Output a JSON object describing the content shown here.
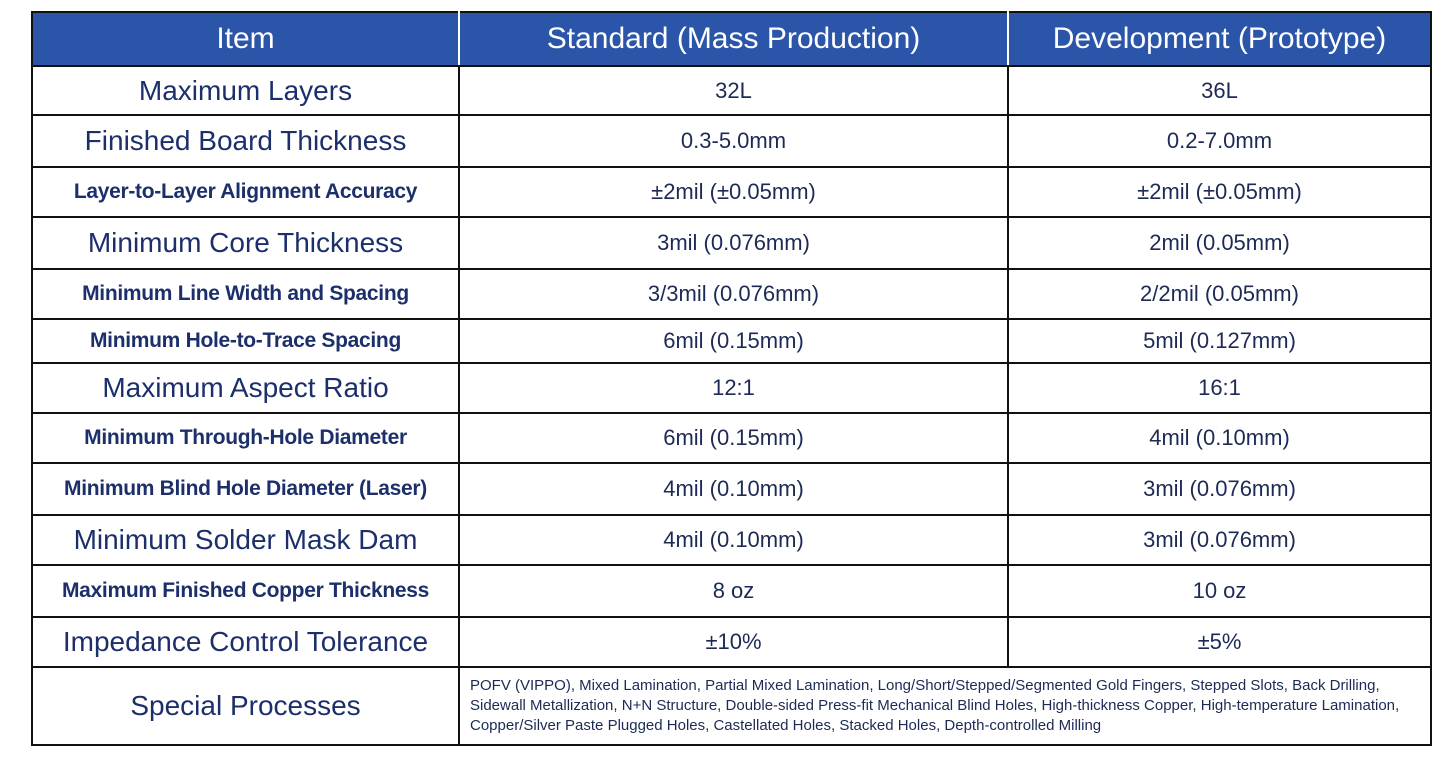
{
  "header": {
    "item": "Item",
    "standard": "Standard (Mass Production)",
    "development": "Development (Prototype)"
  },
  "rows": [
    {
      "item": "Maximum Layers",
      "standard": "32L",
      "development": "36L"
    },
    {
      "item": "Finished Board Thickness",
      "standard": "0.3-5.0mm",
      "development": "0.2-7.0mm"
    },
    {
      "item": "Layer-to-Layer Alignment Accuracy",
      "standard": "±2mil (±0.05mm)",
      "development": "±2mil (±0.05mm)"
    },
    {
      "item": "Minimum Core Thickness",
      "standard": "3mil (0.076mm)",
      "development": "2mil (0.05mm)"
    },
    {
      "item": "Minimum Line Width and Spacing",
      "standard": "3/3mil (0.076mm)",
      "development": "2/2mil (0.05mm)"
    },
    {
      "item": "Minimum Hole-to-Trace Spacing",
      "standard": "6mil (0.15mm)",
      "development": "5mil (0.127mm)"
    },
    {
      "item": "Maximum Aspect Ratio",
      "standard": "12:1",
      "development": "16:1"
    },
    {
      "item": "Minimum Through-Hole Diameter",
      "standard": "6mil (0.15mm)",
      "development": "4mil (0.10mm)"
    },
    {
      "item": "Minimum Blind Hole Diameter (Laser)",
      "standard": "4mil (0.10mm)",
      "development": "3mil (0.076mm)"
    },
    {
      "item": "Minimum Solder Mask Dam",
      "standard": "4mil (0.10mm)",
      "development": "3mil (0.076mm)"
    },
    {
      "item": "Maximum Finished Copper Thickness",
      "standard": "8 oz",
      "development": "10 oz"
    },
    {
      "item": "Impedance Control Tolerance",
      "standard": "±10%",
      "development": "±5%"
    }
  ],
  "special": {
    "item": "Special Processes",
    "text": "POFV (VIPPO), Mixed Lamination, Partial Mixed Lamination, Long/Short/Stepped/Segmented Gold Fingers, Stepped Slots, Back Drilling, Sidewall Metallization, N+N Structure, Double-sided Press-fit Mechanical Blind Holes, High-thickness Copper, High-temperature Lamination, Copper/Silver Paste Plugged Holes, Castellated Holes, Stacked Holes, Depth-controlled Milling"
  },
  "colors": {
    "header_bg": "#2b55a8",
    "header_text": "#ffffff",
    "border": "#111111",
    "body_text": "#1c2a55"
  }
}
